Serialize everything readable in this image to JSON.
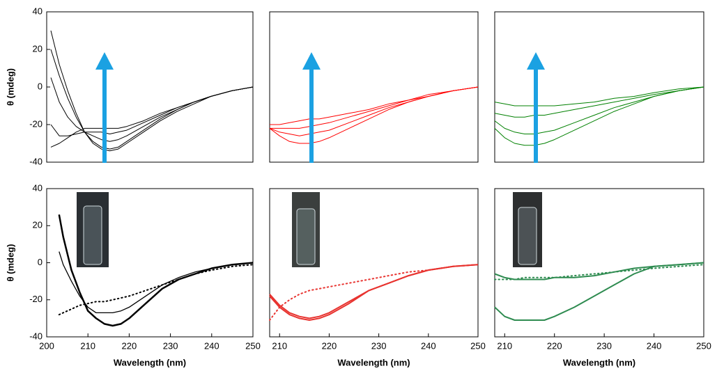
{
  "chart_data": [
    {
      "type": "line",
      "xlim": [
        201,
        250
      ],
      "ylim": [
        -40,
        40
      ],
      "yticks": [
        -40,
        -20,
        0,
        20,
        40
      ],
      "ylabel": "θ (mdeg)",
      "x": [
        202,
        204,
        206,
        208,
        210,
        212,
        214,
        216,
        218,
        220,
        224,
        228,
        232,
        236,
        240,
        245,
        250
      ],
      "series": [
        {
          "color": "#000000",
          "width": 1,
          "values": [
            30,
            12,
            -2,
            -14,
            -24,
            -30,
            -33,
            -34,
            -33,
            -30,
            -24,
            -18,
            -13,
            -9,
            -5,
            -2,
            0
          ]
        },
        {
          "color": "#000000",
          "width": 1,
          "values": [
            20,
            6,
            -6,
            -16,
            -24,
            -29,
            -32,
            -33,
            -32,
            -29,
            -23,
            -17,
            -12,
            -8,
            -5,
            -2,
            0
          ]
        },
        {
          "color": "#000000",
          "width": 1,
          "values": [
            5,
            -8,
            -16,
            -21,
            -24,
            -26,
            -28,
            -29,
            -28,
            -26,
            -21,
            -16,
            -12,
            -8,
            -5,
            -2,
            0
          ]
        },
        {
          "color": "#000000",
          "width": 1,
          "values": [
            -20,
            -26,
            -26,
            -25,
            -24,
            -24,
            -24,
            -25,
            -24,
            -23,
            -19,
            -15,
            -11,
            -8,
            -5,
            -2,
            0
          ]
        },
        {
          "color": "#000000",
          "width": 1,
          "values": [
            -32,
            -30,
            -27,
            -24,
            -22,
            -22,
            -22,
            -22,
            -22,
            -21,
            -18,
            -14,
            -11,
            -8,
            -5,
            -2,
            0
          ]
        }
      ]
    },
    {
      "type": "line",
      "xlim": [
        208,
        250
      ],
      "ylim": [
        -40,
        40
      ],
      "x": [
        208,
        210,
        212,
        214,
        216,
        218,
        220,
        224,
        228,
        232,
        236,
        240,
        245,
        250
      ],
      "series": [
        {
          "color": "#ff0000",
          "width": 1,
          "values": [
            -22,
            -26,
            -29,
            -30,
            -30,
            -29,
            -27,
            -22,
            -17,
            -12,
            -8,
            -5,
            -2,
            0
          ]
        },
        {
          "color": "#ff0000",
          "width": 1,
          "values": [
            -22,
            -24,
            -25,
            -26,
            -25,
            -24,
            -23,
            -19,
            -15,
            -11,
            -8,
            -5,
            -2,
            0
          ]
        },
        {
          "color": "#ff0000",
          "width": 1,
          "values": [
            -22,
            -22,
            -22,
            -22,
            -21,
            -20,
            -19,
            -16,
            -13,
            -10,
            -7,
            -5,
            -2,
            0
          ]
        },
        {
          "color": "#ff0000",
          "width": 1,
          "values": [
            -20,
            -20,
            -19,
            -18,
            -17,
            -17,
            -16,
            -14,
            -12,
            -9,
            -7,
            -4,
            -2,
            0
          ]
        }
      ]
    },
    {
      "type": "line",
      "xlim": [
        208,
        250
      ],
      "ylim": [
        -40,
        40
      ],
      "x": [
        208,
        210,
        212,
        214,
        216,
        218,
        220,
        224,
        228,
        232,
        236,
        240,
        245,
        250
      ],
      "series": [
        {
          "color": "#008000",
          "width": 1,
          "values": [
            -22,
            -27,
            -30,
            -31,
            -31,
            -30,
            -28,
            -23,
            -18,
            -13,
            -9,
            -5,
            -2,
            0
          ]
        },
        {
          "color": "#008000",
          "width": 1,
          "values": [
            -18,
            -22,
            -24,
            -25,
            -25,
            -24,
            -23,
            -19,
            -15,
            -11,
            -8,
            -5,
            -2,
            0
          ]
        },
        {
          "color": "#008000",
          "width": 1,
          "values": [
            -14,
            -15,
            -16,
            -16,
            -15,
            -15,
            -14,
            -12,
            -10,
            -8,
            -6,
            -4,
            -2,
            0
          ]
        },
        {
          "color": "#008000",
          "width": 1,
          "values": [
            -8,
            -9,
            -10,
            -10,
            -10,
            -10,
            -10,
            -9,
            -8,
            -6,
            -5,
            -3,
            -1,
            0
          ]
        }
      ]
    },
    {
      "type": "line",
      "xlim": [
        200,
        250
      ],
      "ylim": [
        -40,
        40
      ],
      "yticks": [
        -40,
        -20,
        0,
        20,
        40
      ],
      "xticks": [
        200,
        210,
        220,
        230,
        240,
        250
      ],
      "ylabel": "θ (mdeg)",
      "xlabel": "Wavelength (nm)",
      "x": [
        203,
        204,
        206,
        208,
        210,
        212,
        214,
        216,
        218,
        220,
        224,
        228,
        232,
        236,
        240,
        245,
        250
      ],
      "series": [
        {
          "color": "#000000",
          "width": 2.5,
          "values": [
            26,
            14,
            -4,
            -16,
            -26,
            -30,
            -33,
            -34,
            -33,
            -30,
            -22,
            -14,
            -9,
            -6,
            -3,
            -1,
            0
          ]
        },
        {
          "color": "#000000",
          "width": 1.3,
          "values": [
            6,
            -1,
            -10,
            -18,
            -24,
            -27,
            -27,
            -27,
            -26,
            -24,
            -18,
            -12,
            -8,
            -5,
            -3,
            -1,
            0
          ]
        },
        {
          "color": "#000000",
          "width": 2,
          "dash": "dotted",
          "values": [
            -28,
            -27,
            -25,
            -23,
            -22,
            -21,
            -21,
            -20,
            -19,
            -18,
            -15,
            -12,
            -9,
            -6,
            -4,
            -2,
            -1
          ]
        }
      ]
    },
    {
      "type": "line",
      "xlim": [
        208,
        250
      ],
      "ylim": [
        -40,
        40
      ],
      "xticks": [
        210,
        220,
        230,
        240,
        250
      ],
      "xlabel": "Wavelength (nm)",
      "x": [
        208,
        210,
        212,
        214,
        216,
        218,
        220,
        224,
        228,
        232,
        236,
        240,
        245,
        250
      ],
      "series": [
        {
          "color": "#e8332f",
          "width": 2,
          "values": [
            -17,
            -23,
            -27,
            -29,
            -30,
            -29,
            -27,
            -21,
            -15,
            -11,
            -7,
            -4,
            -2,
            -1
          ]
        },
        {
          "color": "#e8332f",
          "width": 2,
          "values": [
            -18,
            -24,
            -28,
            -30,
            -31,
            -30,
            -28,
            -22,
            -15,
            -11,
            -7,
            -4,
            -2,
            -1
          ]
        },
        {
          "color": "#e8332f",
          "width": 2,
          "dash": "dotted",
          "values": [
            -31,
            -24,
            -20,
            -17,
            -15,
            -14,
            -13,
            -11,
            -9,
            -7,
            -5,
            -4,
            -2,
            -1
          ]
        }
      ]
    },
    {
      "type": "line",
      "xlim": [
        208,
        250
      ],
      "ylim": [
        -40,
        40
      ],
      "xticks": [
        210,
        220,
        230,
        240,
        250
      ],
      "xlabel": "Wavelength (nm)",
      "x": [
        208,
        210,
        212,
        214,
        216,
        218,
        220,
        224,
        228,
        232,
        236,
        240,
        245,
        250
      ],
      "series": [
        {
          "color": "#2e8b50",
          "width": 2,
          "values": [
            -6,
            -8,
            -9,
            -9,
            -9,
            -9,
            -8,
            -8,
            -7,
            -5,
            -3,
            -2,
            -1,
            0
          ]
        },
        {
          "color": "#2e8b50",
          "width": 2,
          "values": [
            -24,
            -29,
            -31,
            -31,
            -31,
            -31,
            -29,
            -24,
            -18,
            -12,
            -6,
            -2,
            -1,
            0
          ]
        },
        {
          "color": "#2e8b50",
          "width": 2,
          "dash": "dotted",
          "values": [
            -9,
            -9,
            -9,
            -8,
            -8,
            -8,
            -8,
            -7,
            -6,
            -5,
            -4,
            -3,
            -2,
            -1
          ]
        }
      ]
    }
  ]
}
